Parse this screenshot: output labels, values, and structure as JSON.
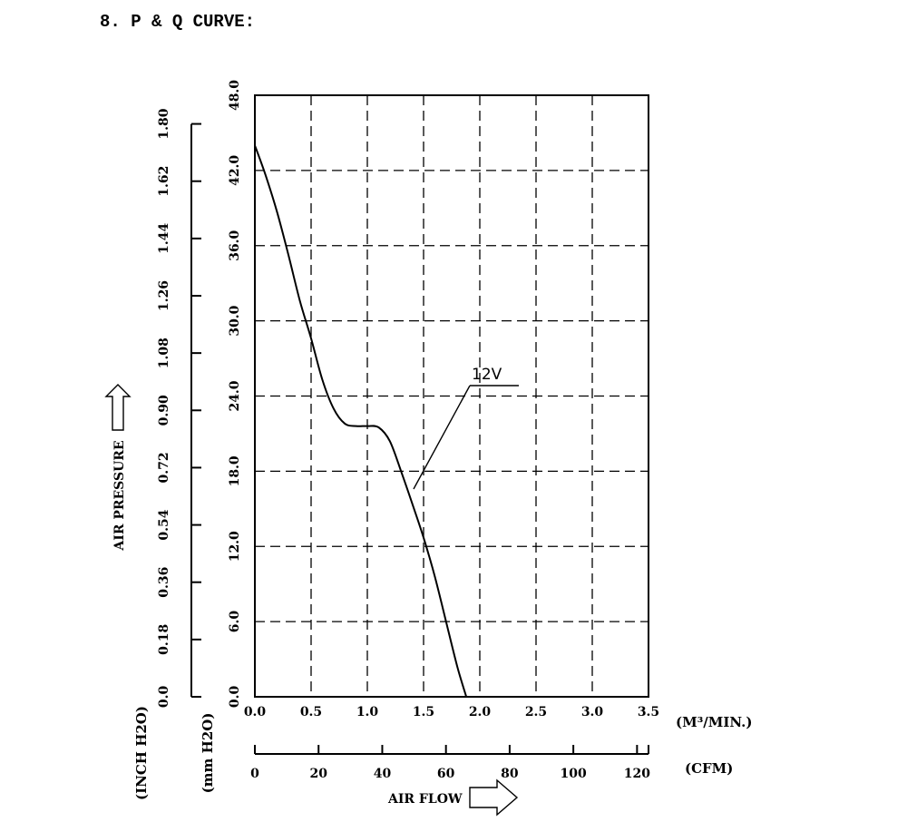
{
  "section_title": "8. P & Q CURVE:",
  "chart_data": {
    "type": "line",
    "x_m3min": {
      "ticks": [
        "0.0",
        "0.5",
        "1.0",
        "1.5",
        "2.0",
        "2.5",
        "3.0",
        "3.5"
      ],
      "lim": [
        0,
        3.5
      ],
      "unit_label": "(M³/MIN.)"
    },
    "x_cfm": {
      "ticks": [
        "0",
        "20",
        "40",
        "60",
        "80",
        "100",
        "120"
      ],
      "tick_values": [
        0,
        20,
        40,
        60,
        80,
        100,
        120
      ],
      "lim": [
        0,
        123.6
      ],
      "unit_label": "(CFM)"
    },
    "xlabel": "AIR FLOW",
    "y_mmh2o": {
      "ticks": [
        "0.0",
        "6.0",
        "12.0",
        "18.0",
        "24.0",
        "30.0",
        "36.0",
        "42.0",
        "48.0"
      ],
      "lim": [
        0,
        48
      ],
      "unit_label": "(mm H2O)"
    },
    "y_inchh2o": {
      "ticks": [
        "0.0",
        "0.18",
        "0.36",
        "0.54",
        "0.72",
        "0.90",
        "1.08",
        "1.26",
        "1.44",
        "1.62",
        "1.80"
      ],
      "tick_values": [
        0,
        0.18,
        0.36,
        0.54,
        0.72,
        0.9,
        1.08,
        1.26,
        1.44,
        1.62,
        1.8
      ],
      "lim": [
        0,
        1.89
      ],
      "unit_label": "(INCH H2O)"
    },
    "ylabel": "AIR PRESSURE",
    "grid": true,
    "series": [
      {
        "name": "12V",
        "x": [
          0.0,
          0.1,
          0.2,
          0.3,
          0.4,
          0.5,
          0.6,
          0.7,
          0.8,
          0.9,
          1.0,
          1.1,
          1.2,
          1.3,
          1.4,
          1.5,
          1.6,
          1.7,
          1.8,
          1.88
        ],
        "y": [
          44.0,
          41.5,
          38.6,
          35.2,
          31.6,
          28.6,
          25.3,
          23.0,
          21.8,
          21.6,
          21.6,
          21.5,
          20.4,
          18.0,
          15.4,
          12.7,
          9.6,
          6.0,
          2.4,
          0.0
        ]
      }
    ]
  }
}
